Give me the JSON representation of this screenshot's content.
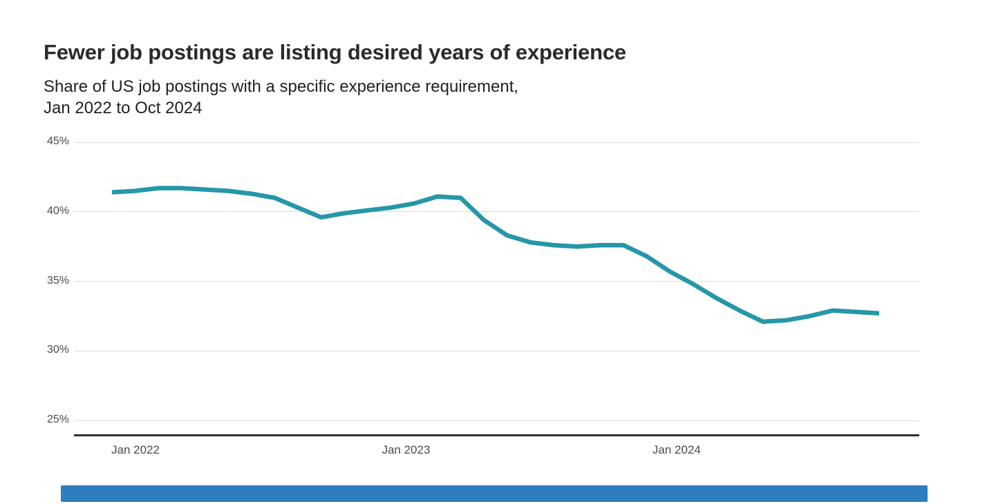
{
  "header": {
    "title": "Fewer job postings are listing desired years of experience",
    "subtitle": "Share of US job postings with a specific experience requirement,\nJan 2022 to Oct 2024"
  },
  "chart_data": {
    "type": "line",
    "title": "Fewer job postings are listing desired years of experience",
    "subtitle": "Share of US job postings with a specific experience requirement, Jan 2022 to Oct 2024",
    "series_name": "Share of US job postings with a specific experience requirement",
    "unit": "%",
    "x": [
      "Jan 2022",
      "Feb 2022",
      "Mar 2022",
      "Apr 2022",
      "May 2022",
      "Jun 2022",
      "Jul 2022",
      "Aug 2022",
      "Sep 2022",
      "Oct 2022",
      "Nov 2022",
      "Dec 2022",
      "Jan 2023",
      "Feb 2023",
      "Mar 2023",
      "Apr 2023",
      "May 2023",
      "Jun 2023",
      "Jul 2023",
      "Aug 2023",
      "Sep 2023",
      "Oct 2023",
      "Nov 2023",
      "Dec 2023",
      "Jan 2024",
      "Feb 2024",
      "Mar 2024",
      "Apr 2024",
      "May 2024",
      "Jun 2024",
      "Jul 2024",
      "Aug 2024",
      "Sep 2024",
      "Oct 2024"
    ],
    "values": [
      41.4,
      41.5,
      41.7,
      41.7,
      41.6,
      41.5,
      41.3,
      41.0,
      40.3,
      39.6,
      39.9,
      40.1,
      40.3,
      40.6,
      41.1,
      41.0,
      39.4,
      38.3,
      37.8,
      37.6,
      37.5,
      37.6,
      37.6,
      36.8,
      35.7,
      34.8,
      33.8,
      32.9,
      32.1,
      32.2,
      32.5,
      32.9,
      32.8,
      32.7
    ],
    "ylim": [
      25,
      45
    ],
    "yticks": [
      {
        "label": "45%",
        "value": 45
      },
      {
        "label": "40%",
        "value": 40
      },
      {
        "label": "35%",
        "value": 35
      },
      {
        "label": "30%",
        "value": 30
      },
      {
        "label": "25%",
        "value": 25
      }
    ],
    "xticks": [
      {
        "label": "Jan 2022",
        "monthIndex": 0
      },
      {
        "label": "Jan 2023",
        "monthIndex": 12
      },
      {
        "label": "Jan 2024",
        "monthIndex": 24
      }
    ],
    "grid": true,
    "legend": "none",
    "line_color": "#2597a9"
  },
  "bottom_bar": {
    "color": "#2e7dbe"
  }
}
